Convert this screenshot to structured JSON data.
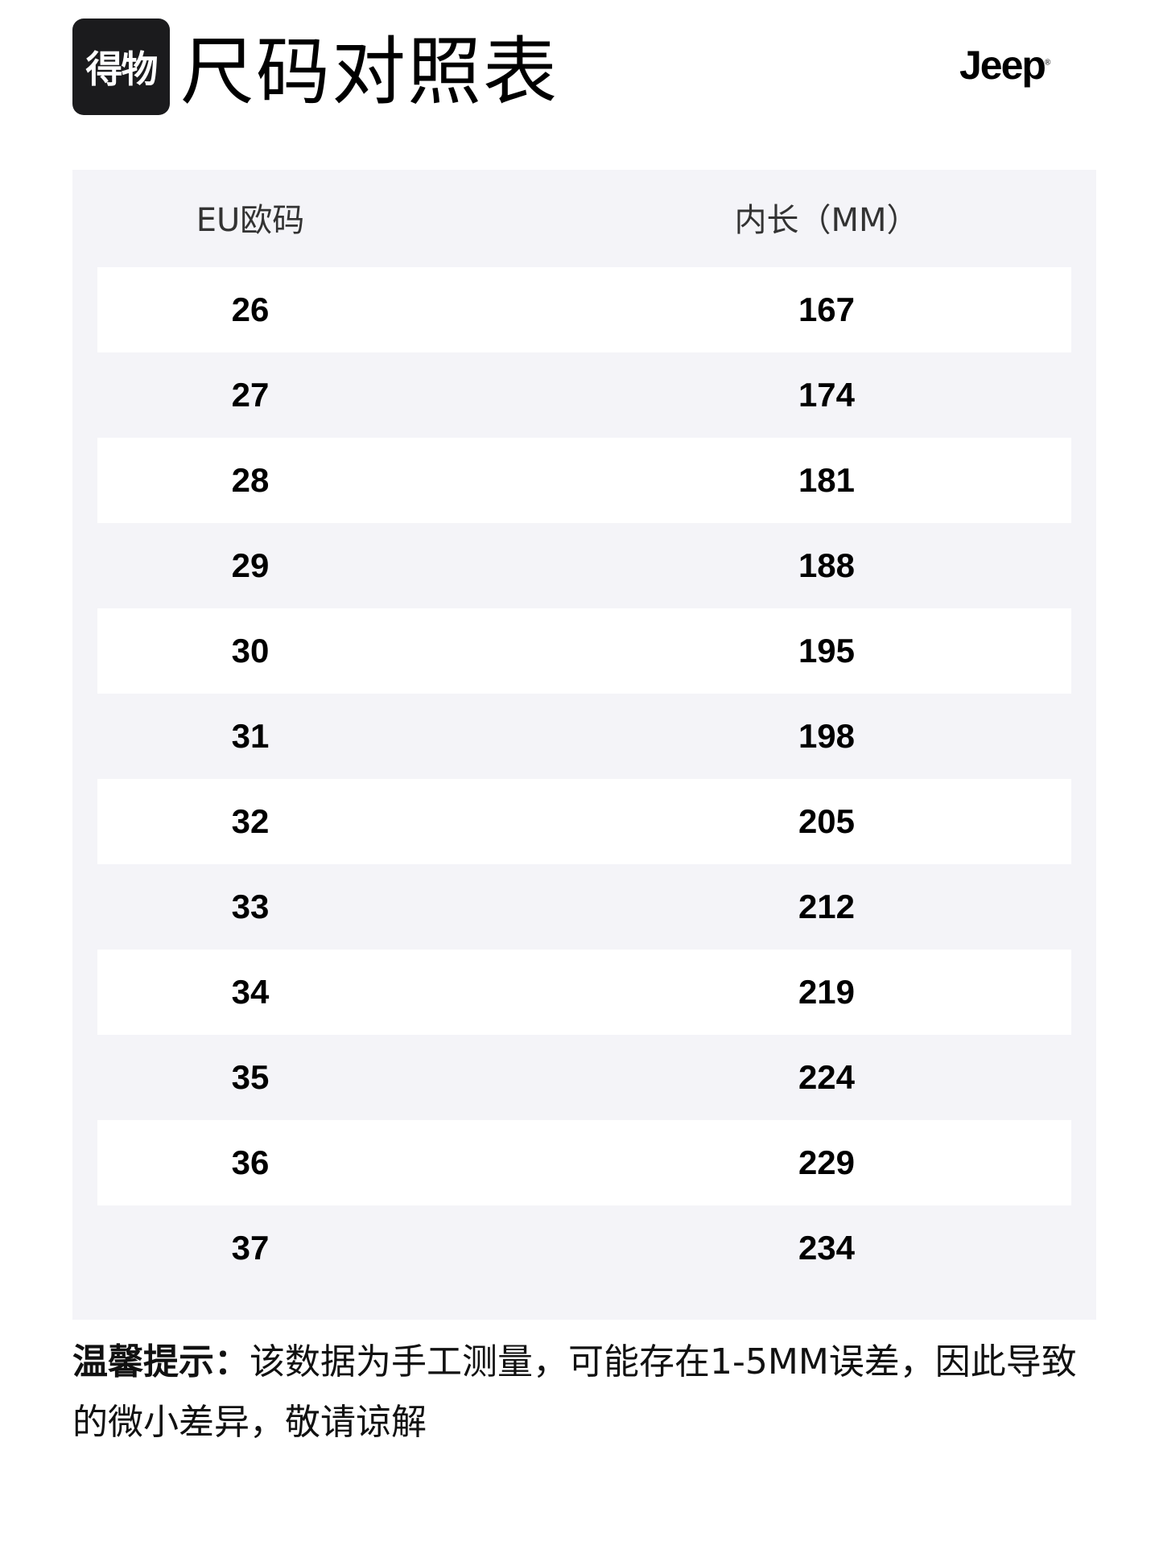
{
  "header": {
    "brand_logo_text": "得物",
    "title": "尺码对照表",
    "partner_logo_text": "Jeep"
  },
  "table": {
    "columns": [
      "EU欧码",
      "内长（MM）"
    ],
    "rows": [
      [
        "26",
        "167"
      ],
      [
        "27",
        "174"
      ],
      [
        "28",
        "181"
      ],
      [
        "29",
        "188"
      ],
      [
        "30",
        "195"
      ],
      [
        "31",
        "198"
      ],
      [
        "32",
        "205"
      ],
      [
        "33",
        "212"
      ],
      [
        "34",
        "219"
      ],
      [
        "35",
        "224"
      ],
      [
        "36",
        "229"
      ],
      [
        "37",
        "234"
      ]
    ]
  },
  "note": {
    "label": "温馨提示：",
    "text": "该数据为手工测量，可能存在1-5MM误差，因此导致的微小差异，敬请谅解"
  },
  "colors": {
    "panel_bg": "#f4f4f8",
    "row_alt": "#ffffff",
    "logo_bg": "#1b1b1d"
  }
}
